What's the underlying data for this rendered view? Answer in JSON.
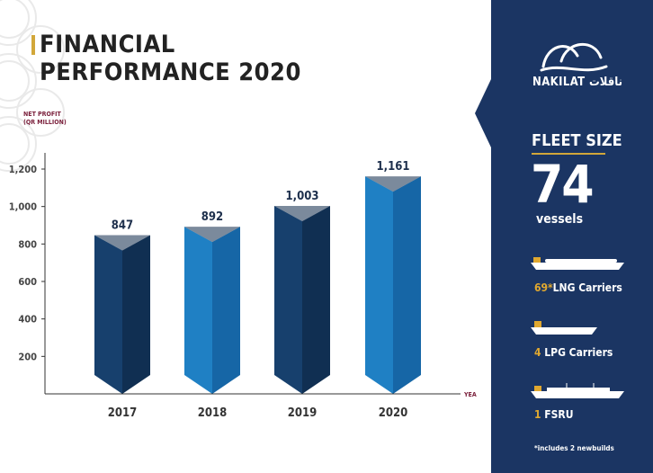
{
  "page": {
    "title_line1": "FINANCIAL",
    "title_line2": "PERFORMANCE 2020"
  },
  "colors": {
    "bar_dark": "#17406d",
    "bar_dark_side": "#102f52",
    "bar_light": "#1f80c4",
    "bar_light_side": "#1666a6",
    "navy": "#1b3563",
    "gold": "#d2a73a"
  },
  "chart_data": {
    "type": "bar",
    "title": "",
    "ylabel_line1": "NET PROFIT",
    "ylabel_line2": "(QR MILLION)",
    "xlabel": "YEAR",
    "categories": [
      "2017",
      "2018",
      "2019",
      "2020"
    ],
    "values": [
      847,
      892,
      1003,
      1161
    ],
    "value_labels": [
      "847",
      "892",
      "1,003",
      "1,161"
    ],
    "yticks": [
      200,
      400,
      600,
      800,
      1000,
      1200
    ],
    "ytick_labels": [
      "200",
      "400",
      "600",
      "800",
      "1,000",
      "1,200"
    ],
    "ylim": [
      0,
      1200
    ],
    "bar_shades": [
      "dark",
      "light",
      "dark",
      "light"
    ]
  },
  "sidebar": {
    "logo_text": "NAKILAT ناقلات",
    "fleet_title": "FLEET SIZE",
    "fleet_count": "74",
    "fleet_unit": "vessels",
    "items": [
      {
        "count": "69*",
        "label": "LNG Carriers",
        "icon": "lng-carrier-ship-icon"
      },
      {
        "count": "4",
        "label": "LPG Carriers",
        "icon": "lpg-carrier-ship-icon"
      },
      {
        "count": "1",
        "label": "FSRU",
        "icon": "fsru-ship-icon"
      }
    ],
    "footnote": "*includes 2 newbuilds"
  }
}
